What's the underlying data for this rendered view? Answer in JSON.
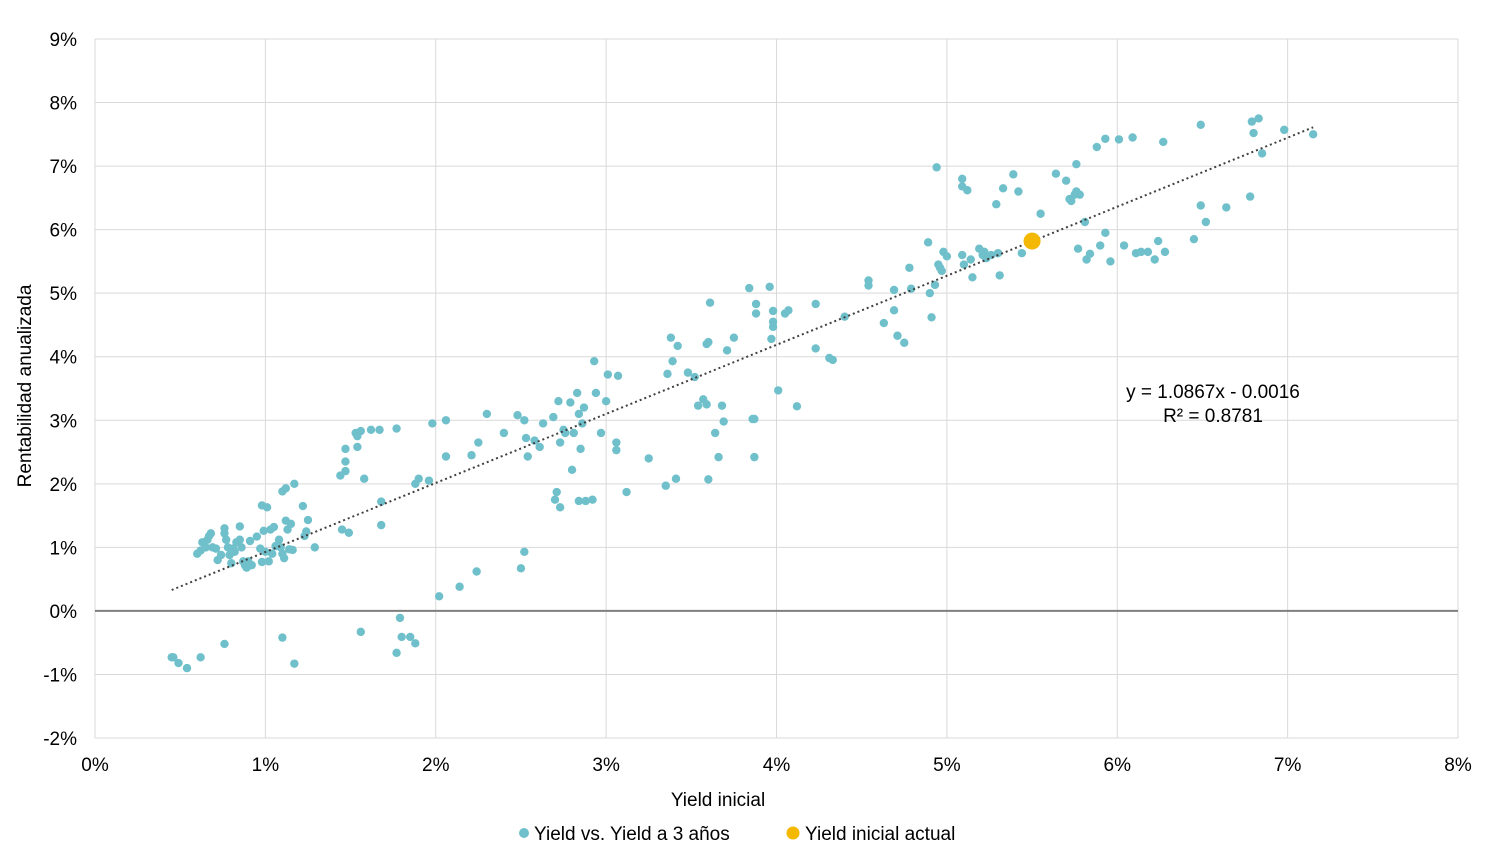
{
  "chart_data": {
    "type": "scatter",
    "xlabel": "Yield inicial",
    "ylabel": "Rentabilidad anualizada",
    "xlim": [
      0,
      0.08
    ],
    "ylim": [
      -0.02,
      0.09
    ],
    "x_ticks": [
      "0%",
      "1%",
      "2%",
      "3%",
      "4%",
      "5%",
      "6%",
      "7%",
      "8%"
    ],
    "y_ticks": [
      "-2%",
      "-1%",
      "0%",
      "1%",
      "2%",
      "3%",
      "4%",
      "5%",
      "6%",
      "7%",
      "8%",
      "9%"
    ],
    "grid": true,
    "legend_position": "bottom",
    "colors": {
      "series": "#6fc0cb",
      "current": "#f5b800",
      "zero_line": "#7f7f7f",
      "grid": "#d9d9d9",
      "trend": "#404040"
    },
    "trendline": {
      "slope": 1.0867,
      "intercept": -0.0016,
      "x_range": [
        0.0045,
        0.0715
      ],
      "equation_label": "y = 1.0867x - 0.0016",
      "r2_label": "R² = 0.8781"
    },
    "series": [
      {
        "name": "Yield vs. Yield a 3 años",
        "points": [
          [
            0.0045,
            -0.0073
          ],
          [
            0.0046,
            -0.0073
          ],
          [
            0.0049,
            -0.0082
          ],
          [
            0.0054,
            -0.009
          ],
          [
            0.0062,
            -0.0073
          ],
          [
            0.0076,
            -0.0052
          ],
          [
            0.011,
            -0.0042
          ],
          [
            0.0117,
            -0.0083
          ],
          [
            0.0156,
            -0.0033
          ],
          [
            0.0177,
            -0.0066
          ],
          [
            0.0179,
            -0.0011
          ],
          [
            0.018,
            -0.0041
          ],
          [
            0.0185,
            -0.0041
          ],
          [
            0.0188,
            -0.0051
          ],
          [
            0.006,
            0.009
          ],
          [
            0.0062,
            0.0095
          ],
          [
            0.0063,
            0.0108
          ],
          [
            0.0065,
            0.01
          ],
          [
            0.0066,
            0.0112
          ],
          [
            0.0067,
            0.0118
          ],
          [
            0.0068,
            0.0122
          ],
          [
            0.0069,
            0.01
          ],
          [
            0.0071,
            0.0098
          ],
          [
            0.0072,
            0.008
          ],
          [
            0.0074,
            0.0088
          ],
          [
            0.0076,
            0.0122
          ],
          [
            0.0076,
            0.013
          ],
          [
            0.0077,
            0.0112
          ],
          [
            0.0078,
            0.01
          ],
          [
            0.0079,
            0.0088
          ],
          [
            0.008,
            0.0075
          ],
          [
            0.0081,
            0.0098
          ],
          [
            0.0082,
            0.0093
          ],
          [
            0.0083,
            0.0108
          ],
          [
            0.0085,
            0.0133
          ],
          [
            0.0085,
            0.0112
          ],
          [
            0.0086,
            0.01
          ],
          [
            0.0087,
            0.0078
          ],
          [
            0.0088,
            0.0072
          ],
          [
            0.0089,
            0.0068
          ],
          [
            0.009,
            0.0078
          ],
          [
            0.0091,
            0.011
          ],
          [
            0.0092,
            0.0072
          ],
          [
            0.0095,
            0.0117
          ],
          [
            0.0097,
            0.0098
          ],
          [
            0.0098,
            0.0077
          ],
          [
            0.0098,
            0.0166
          ],
          [
            0.0099,
            0.0126
          ],
          [
            0.01,
            0.0093
          ],
          [
            0.0101,
            0.0163
          ],
          [
            0.0102,
            0.0078
          ],
          [
            0.0103,
            0.0128
          ],
          [
            0.0104,
            0.009
          ],
          [
            0.0105,
            0.0132
          ],
          [
            0.0106,
            0.0102
          ],
          [
            0.0108,
            0.0112
          ],
          [
            0.0109,
            0.01
          ],
          [
            0.011,
            0.009
          ],
          [
            0.011,
            0.0188
          ],
          [
            0.0111,
            0.0083
          ],
          [
            0.0112,
            0.0142
          ],
          [
            0.0112,
            0.0193
          ],
          [
            0.0113,
            0.0128
          ],
          [
            0.0114,
            0.0097
          ],
          [
            0.0115,
            0.0137
          ],
          [
            0.0116,
            0.0096
          ],
          [
            0.0117,
            0.02
          ],
          [
            0.0122,
            0.0165
          ],
          [
            0.0123,
            0.0118
          ],
          [
            0.0124,
            0.0125
          ],
          [
            0.0125,
            0.0143
          ],
          [
            0.0129,
            0.01
          ],
          [
            0.0144,
            0.0213
          ],
          [
            0.0145,
            0.0128
          ],
          [
            0.0147,
            0.0255
          ],
          [
            0.0147,
            0.0235
          ],
          [
            0.0147,
            0.022
          ],
          [
            0.0149,
            0.0123
          ],
          [
            0.0153,
            0.028
          ],
          [
            0.0154,
            0.0275
          ],
          [
            0.0154,
            0.0258
          ],
          [
            0.0156,
            0.0283
          ],
          [
            0.0158,
            0.0208
          ],
          [
            0.0162,
            0.0285
          ],
          [
            0.0167,
            0.0285
          ],
          [
            0.0168,
            0.0172
          ],
          [
            0.0168,
            0.0135
          ],
          [
            0.0177,
            0.0287
          ],
          [
            0.0188,
            0.02
          ],
          [
            0.019,
            0.0208
          ],
          [
            0.0196,
            0.0205
          ],
          [
            0.0198,
            0.0295
          ],
          [
            0.0202,
            0.0023
          ],
          [
            0.0206,
            0.0243
          ],
          [
            0.0206,
            0.03
          ],
          [
            0.0214,
            0.0038
          ],
          [
            0.0221,
            0.0245
          ],
          [
            0.0224,
            0.0062
          ],
          [
            0.0225,
            0.0265
          ],
          [
            0.023,
            0.031
          ],
          [
            0.024,
            0.028
          ],
          [
            0.0248,
            0.0308
          ],
          [
            0.025,
            0.0067
          ],
          [
            0.0252,
            0.0093
          ],
          [
            0.0252,
            0.03
          ],
          [
            0.0253,
            0.0272
          ],
          [
            0.0254,
            0.0243
          ],
          [
            0.0258,
            0.0268
          ],
          [
            0.0261,
            0.0258
          ],
          [
            0.0263,
            0.0295
          ],
          [
            0.0269,
            0.0305
          ],
          [
            0.027,
            0.0175
          ],
          [
            0.0271,
            0.0187
          ],
          [
            0.0272,
            0.033
          ],
          [
            0.0273,
            0.0163
          ],
          [
            0.0273,
            0.0265
          ],
          [
            0.0275,
            0.0285
          ],
          [
            0.0276,
            0.028
          ],
          [
            0.0279,
            0.0328
          ],
          [
            0.028,
            0.0222
          ],
          [
            0.0281,
            0.028
          ],
          [
            0.0283,
            0.0343
          ],
          [
            0.0284,
            0.031
          ],
          [
            0.0284,
            0.0173
          ],
          [
            0.0285,
            0.0255
          ],
          [
            0.0286,
            0.0295
          ],
          [
            0.0287,
            0.032
          ],
          [
            0.0288,
            0.0173
          ],
          [
            0.0292,
            0.0175
          ],
          [
            0.0293,
            0.0393
          ],
          [
            0.0294,
            0.0343
          ],
          [
            0.0297,
            0.028
          ],
          [
            0.03,
            0.033
          ],
          [
            0.0301,
            0.0372
          ],
          [
            0.0306,
            0.0253
          ],
          [
            0.0306,
            0.0265
          ],
          [
            0.0307,
            0.037
          ],
          [
            0.0312,
            0.0187
          ],
          [
            0.0325,
            0.024
          ],
          [
            0.0335,
            0.0197
          ],
          [
            0.0336,
            0.0373
          ],
          [
            0.0338,
            0.043
          ],
          [
            0.0339,
            0.0393
          ],
          [
            0.0341,
            0.0208
          ],
          [
            0.0342,
            0.0417
          ],
          [
            0.0348,
            0.0375
          ],
          [
            0.0352,
            0.0368
          ],
          [
            0.0354,
            0.0323
          ],
          [
            0.0357,
            0.0333
          ],
          [
            0.0359,
            0.0325
          ],
          [
            0.0359,
            0.042
          ],
          [
            0.036,
            0.0423
          ],
          [
            0.036,
            0.0207
          ],
          [
            0.0361,
            0.0485
          ],
          [
            0.0364,
            0.028
          ],
          [
            0.0366,
            0.0242
          ],
          [
            0.0368,
            0.0323
          ],
          [
            0.0369,
            0.0298
          ],
          [
            0.0371,
            0.041
          ],
          [
            0.0375,
            0.043
          ],
          [
            0.0384,
            0.0508
          ],
          [
            0.0386,
            0.0302
          ],
          [
            0.0387,
            0.0302
          ],
          [
            0.0387,
            0.0242
          ],
          [
            0.0388,
            0.0468
          ],
          [
            0.0388,
            0.0483
          ],
          [
            0.0396,
            0.051
          ],
          [
            0.0397,
            0.0428
          ],
          [
            0.0398,
            0.0455
          ],
          [
            0.0398,
            0.0472
          ],
          [
            0.0398,
            0.0447
          ],
          [
            0.0401,
            0.0347
          ],
          [
            0.0405,
            0.0468
          ],
          [
            0.0407,
            0.0473
          ],
          [
            0.0412,
            0.0322
          ],
          [
            0.0423,
            0.0483
          ],
          [
            0.0423,
            0.0413
          ],
          [
            0.0431,
            0.0398
          ],
          [
            0.0433,
            0.0395
          ],
          [
            0.044,
            0.0463
          ],
          [
            0.0454,
            0.052
          ],
          [
            0.0454,
            0.0512
          ],
          [
            0.0463,
            0.0453
          ],
          [
            0.0469,
            0.0505
          ],
          [
            0.0469,
            0.0473
          ],
          [
            0.0471,
            0.0433
          ],
          [
            0.0475,
            0.0422
          ],
          [
            0.0478,
            0.054
          ],
          [
            0.0479,
            0.0507
          ],
          [
            0.0489,
            0.058
          ],
          [
            0.049,
            0.05
          ],
          [
            0.0491,
            0.0462
          ],
          [
            0.0493,
            0.0513
          ],
          [
            0.0494,
            0.0698
          ],
          [
            0.0495,
            0.0545
          ],
          [
            0.0496,
            0.054
          ],
          [
            0.0497,
            0.0535
          ],
          [
            0.0498,
            0.0565
          ],
          [
            0.05,
            0.0558
          ],
          [
            0.0509,
            0.056
          ],
          [
            0.0509,
            0.068
          ],
          [
            0.0509,
            0.0668
          ],
          [
            0.051,
            0.0545
          ],
          [
            0.0512,
            0.0662
          ],
          [
            0.0514,
            0.0553
          ],
          [
            0.0515,
            0.0525
          ],
          [
            0.0519,
            0.057
          ],
          [
            0.0521,
            0.056
          ],
          [
            0.0522,
            0.0565
          ],
          [
            0.0523,
            0.0555
          ],
          [
            0.0526,
            0.056
          ],
          [
            0.0529,
            0.064
          ],
          [
            0.053,
            0.0563
          ],
          [
            0.0531,
            0.0528
          ],
          [
            0.0533,
            0.0665
          ],
          [
            0.0539,
            0.0687
          ],
          [
            0.0542,
            0.066
          ],
          [
            0.0544,
            0.0563
          ],
          [
            0.0555,
            0.0625
          ],
          [
            0.0564,
            0.0688
          ],
          [
            0.057,
            0.0677
          ],
          [
            0.0572,
            0.0648
          ],
          [
            0.0573,
            0.0645
          ],
          [
            0.0575,
            0.0655
          ],
          [
            0.0576,
            0.0703
          ],
          [
            0.0576,
            0.066
          ],
          [
            0.0577,
            0.057
          ],
          [
            0.0578,
            0.0655
          ],
          [
            0.0581,
            0.0612
          ],
          [
            0.0582,
            0.0553
          ],
          [
            0.0584,
            0.0562
          ],
          [
            0.0588,
            0.073
          ],
          [
            0.059,
            0.0575
          ],
          [
            0.0593,
            0.0743
          ],
          [
            0.0593,
            0.0595
          ],
          [
            0.0596,
            0.055
          ],
          [
            0.0601,
            0.0742
          ],
          [
            0.0604,
            0.0575
          ],
          [
            0.0609,
            0.0745
          ],
          [
            0.0611,
            0.0563
          ],
          [
            0.0614,
            0.0565
          ],
          [
            0.0618,
            0.0565
          ],
          [
            0.0622,
            0.0553
          ],
          [
            0.0624,
            0.0582
          ],
          [
            0.0627,
            0.0738
          ],
          [
            0.0628,
            0.0565
          ],
          [
            0.0645,
            0.0585
          ],
          [
            0.0649,
            0.0765
          ],
          [
            0.0649,
            0.0638
          ],
          [
            0.0652,
            0.0612
          ],
          [
            0.0664,
            0.0635
          ],
          [
            0.0678,
            0.0652
          ],
          [
            0.0679,
            0.077
          ],
          [
            0.068,
            0.0752
          ],
          [
            0.0683,
            0.0775
          ],
          [
            0.0685,
            0.072
          ],
          [
            0.0698,
            0.0757
          ],
          [
            0.0715,
            0.075
          ]
        ]
      },
      {
        "name": "Yield inicial actual",
        "points": [
          [
            0.055,
            0.0582
          ]
        ]
      }
    ]
  }
}
